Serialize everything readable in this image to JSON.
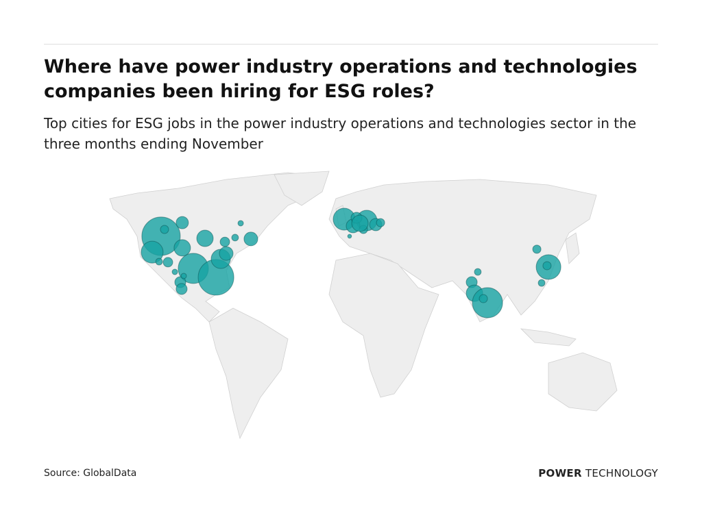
{
  "header": {
    "title": "Where have power industry operations and technologies companies been hiring for ESG roles?",
    "subtitle": "Top cities for ESG jobs in the power industry operations and technologies sector in the three months ending November"
  },
  "map": {
    "bubble_color": "#17a3a3",
    "bubbles": [
      {
        "lon": -111.7,
        "lat": 43.4,
        "value": 196
      },
      {
        "lon": -117.1,
        "lat": 35.2,
        "value": 64
      },
      {
        "lon": -98.8,
        "lat": 50.4,
        "value": 20
      },
      {
        "lon": -109.6,
        "lat": 46.9,
        "value": 9
      },
      {
        "lon": -85.0,
        "lat": 42.3,
        "value": 36
      },
      {
        "lon": -98.8,
        "lat": 37.4,
        "value": 36
      },
      {
        "lon": -92.1,
        "lat": 26.8,
        "value": 121
      },
      {
        "lon": -78.3,
        "lat": 22.2,
        "value": 169
      },
      {
        "lon": -75.4,
        "lat": 31.7,
        "value": 49
      },
      {
        "lon": -72.1,
        "lat": 34.5,
        "value": 25
      },
      {
        "lon": -72.9,
        "lat": 40.5,
        "value": 12
      },
      {
        "lon": -66.7,
        "lat": 42.7,
        "value": 6
      },
      {
        "lon": -57.1,
        "lat": 42.0,
        "value": 25
      },
      {
        "lon": -63.3,
        "lat": 50.1,
        "value": 4
      },
      {
        "lon": -107.5,
        "lat": 30.0,
        "value": 12
      },
      {
        "lon": -112.9,
        "lat": 30.3,
        "value": 6
      },
      {
        "lon": -100.0,
        "lat": 19.7,
        "value": 16
      },
      {
        "lon": -99.2,
        "lat": 16.2,
        "value": 16
      },
      {
        "lon": -103.3,
        "lat": 25.0,
        "value": 4
      },
      {
        "lon": -97.9,
        "lat": 22.9,
        "value": 4
      },
      {
        "lon": -0.4,
        "lat": 52.2,
        "value": 64
      },
      {
        "lon": 13.3,
        "lat": 51.5,
        "value": 56
      },
      {
        "lon": 5.0,
        "lat": 48.7,
        "value": 25
      },
      {
        "lon": 18.8,
        "lat": 49.4,
        "value": 20
      },
      {
        "lon": 7.1,
        "lat": 52.9,
        "value": 16
      },
      {
        "lon": 11.3,
        "lat": 46.9,
        "value": 9
      },
      {
        "lon": 2.9,
        "lat": 43.4,
        "value": 2
      },
      {
        "lon": 21.7,
        "lat": 50.4,
        "value": 9
      },
      {
        "lon": 9.2,
        "lat": 50.1,
        "value": 36
      },
      {
        "lon": 77.1,
        "lat": 19.7,
        "value": 16
      },
      {
        "lon": 80.8,
        "lat": 25.0,
        "value": 6
      },
      {
        "lon": 78.8,
        "lat": 14.0,
        "value": 36
      },
      {
        "lon": 86.7,
        "lat": 9.1,
        "value": 121
      },
      {
        "lon": 84.2,
        "lat": 11.2,
        "value": 9
      },
      {
        "lon": 116.7,
        "lat": 36.7,
        "value": 9
      },
      {
        "lon": 123.8,
        "lat": 27.5,
        "value": 81
      },
      {
        "lon": 122.9,
        "lat": 28.2,
        "value": 9
      },
      {
        "lon": 119.6,
        "lat": 19.3,
        "value": 6
      }
    ]
  },
  "footer": {
    "source": "Source: GlobalData",
    "brand_bold": "POWER",
    "brand": "TECHNOLOGY"
  }
}
